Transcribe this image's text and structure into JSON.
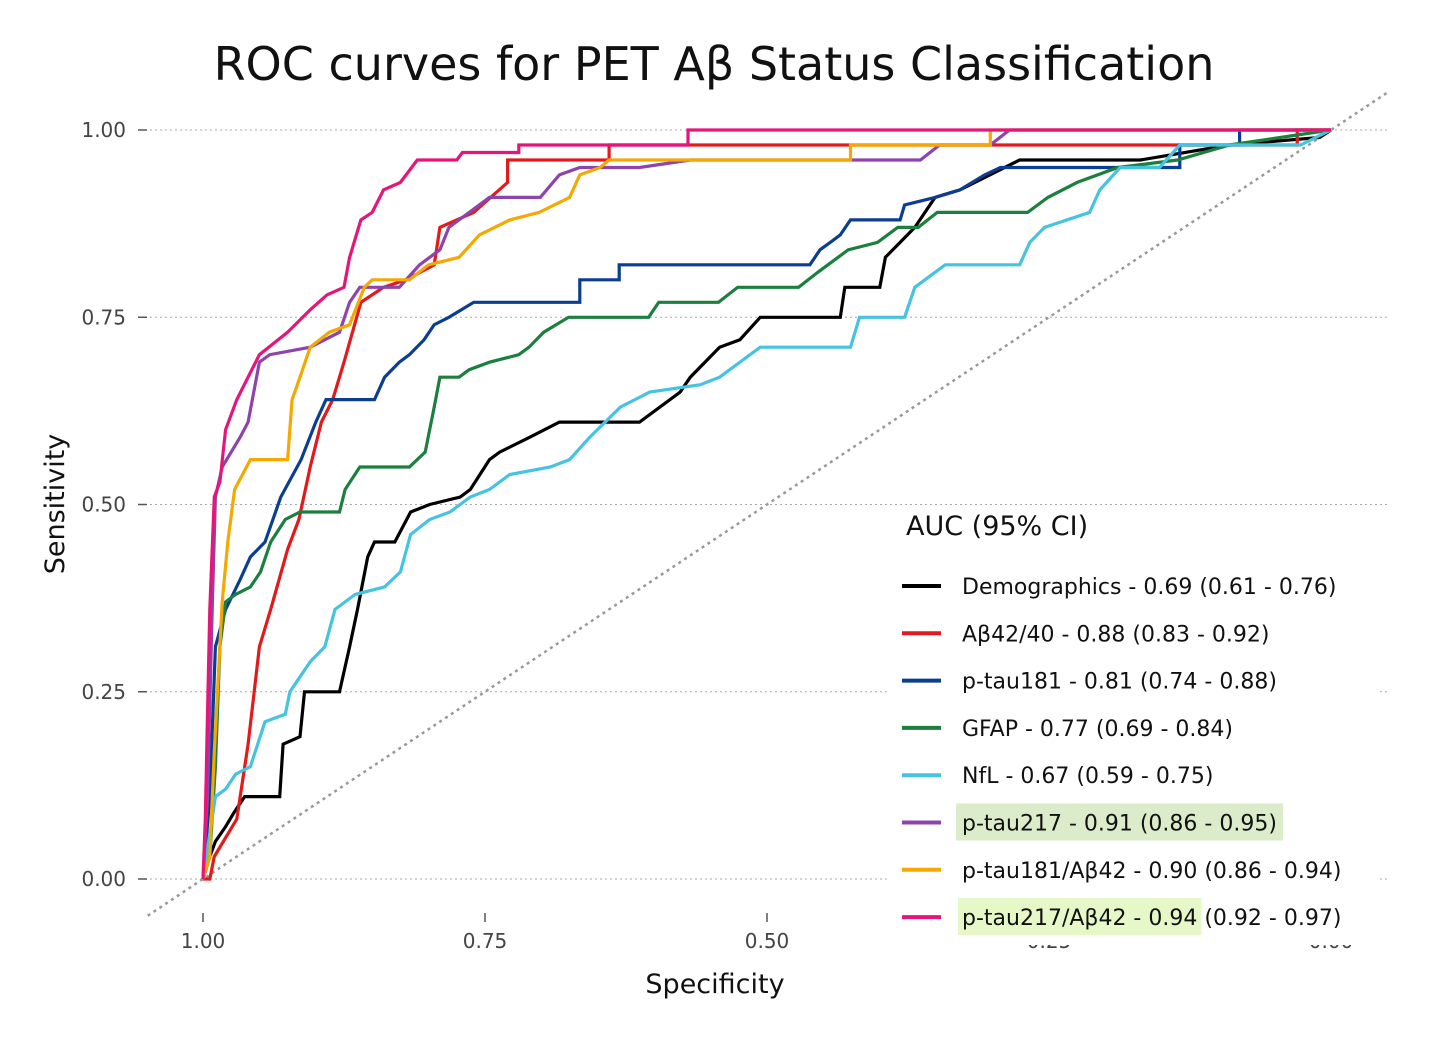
{
  "chart_data": {
    "type": "line",
    "title": "ROC curves for PET Aβ Status Classification",
    "xlabel": "Specificity",
    "ylabel": "Sensitivity",
    "xlim": [
      1.0,
      0.0
    ],
    "ylim": [
      0.0,
      1.0
    ],
    "x_reversed": true,
    "grid": "horizontal dotted",
    "reference_line": "diagonal dotted (chance)",
    "x_ticks": [
      "1.00",
      "0.75",
      "0.50",
      "0.25",
      "0.00"
    ],
    "x_tick_values": [
      1.0,
      0.75,
      0.5,
      0.25,
      0.0
    ],
    "y_ticks": [
      "0.00",
      "0.25",
      "0.50",
      "0.75",
      "1.00"
    ],
    "y_tick_values": [
      0.0,
      0.25,
      0.5,
      0.75,
      1.0
    ],
    "legend_title": "AUC (95% CI)",
    "legend_position": "bottom-right",
    "series": [
      {
        "name": "Demographics - 0.69 (0.61 - 0.76)",
        "color": "#000000",
        "highlight": null,
        "points": [
          [
            1,
            0
          ],
          [
            0.994,
            0.03
          ],
          [
            0.989,
            0.05
          ],
          [
            0.98,
            0.07
          ],
          [
            0.972,
            0.09
          ],
          [
            0.963,
            0.11
          ],
          [
            0.932,
            0.11
          ],
          [
            0.929,
            0.18
          ],
          [
            0.914,
            0.19
          ],
          [
            0.91,
            0.25
          ],
          [
            0.879,
            0.25
          ],
          [
            0.87,
            0.31
          ],
          [
            0.863,
            0.36
          ],
          [
            0.854,
            0.43
          ],
          [
            0.848,
            0.45
          ],
          [
            0.83,
            0.45
          ],
          [
            0.816,
            0.49
          ],
          [
            0.799,
            0.5
          ],
          [
            0.772,
            0.51
          ],
          [
            0.763,
            0.52
          ],
          [
            0.746,
            0.56
          ],
          [
            0.737,
            0.57
          ],
          [
            0.71,
            0.59
          ],
          [
            0.684,
            0.61
          ],
          [
            0.613,
            0.61
          ],
          [
            0.577,
            0.65
          ],
          [
            0.568,
            0.67
          ],
          [
            0.542,
            0.71
          ],
          [
            0.524,
            0.72
          ],
          [
            0.506,
            0.75
          ],
          [
            0.435,
            0.75
          ],
          [
            0.431,
            0.79
          ],
          [
            0.4,
            0.79
          ],
          [
            0.395,
            0.83
          ],
          [
            0.382,
            0.85
          ],
          [
            0.369,
            0.87
          ],
          [
            0.351,
            0.91
          ],
          [
            0.329,
            0.92
          ],
          [
            0.276,
            0.96
          ],
          [
            0.169,
            0.96
          ],
          [
            0.09,
            0.98
          ],
          [
            0.01,
            0.99
          ],
          [
            0,
            1
          ]
        ]
      },
      {
        "name": "Aβ42/40 - 0.88 (0.83 - 0.92)",
        "color": "#e31a1c",
        "highlight": null,
        "points": [
          [
            1,
            0
          ],
          [
            0.994,
            0
          ],
          [
            0.99,
            0.03
          ],
          [
            0.97,
            0.08
          ],
          [
            0.96,
            0.18
          ],
          [
            0.95,
            0.31
          ],
          [
            0.94,
            0.36
          ],
          [
            0.925,
            0.44
          ],
          [
            0.915,
            0.48
          ],
          [
            0.905,
            0.55
          ],
          [
            0.895,
            0.61
          ],
          [
            0.885,
            0.64
          ],
          [
            0.875,
            0.69
          ],
          [
            0.86,
            0.77
          ],
          [
            0.84,
            0.79
          ],
          [
            0.82,
            0.8
          ],
          [
            0.795,
            0.82
          ],
          [
            0.79,
            0.87
          ],
          [
            0.76,
            0.89
          ],
          [
            0.73,
            0.93
          ],
          [
            0.73,
            0.96
          ],
          [
            0.64,
            0.96
          ],
          [
            0.64,
            0.98
          ],
          [
            0.03,
            0.98
          ],
          [
            0.03,
            1
          ],
          [
            0,
            1
          ]
        ]
      },
      {
        "name": "p-tau181 - 0.81 (0.74 - 0.88)",
        "color": "#0b3d91",
        "highlight": null,
        "points": [
          [
            1,
            0
          ],
          [
            0.994,
            0.11
          ],
          [
            0.989,
            0.31
          ],
          [
            0.98,
            0.36
          ],
          [
            0.967,
            0.4
          ],
          [
            0.958,
            0.43
          ],
          [
            0.945,
            0.45
          ],
          [
            0.931,
            0.51
          ],
          [
            0.913,
            0.56
          ],
          [
            0.9,
            0.61
          ],
          [
            0.891,
            0.64
          ],
          [
            0.848,
            0.64
          ],
          [
            0.839,
            0.67
          ],
          [
            0.826,
            0.69
          ],
          [
            0.817,
            0.7
          ],
          [
            0.804,
            0.72
          ],
          [
            0.795,
            0.74
          ],
          [
            0.782,
            0.75
          ],
          [
            0.76,
            0.77
          ],
          [
            0.666,
            0.77
          ],
          [
            0.666,
            0.8
          ],
          [
            0.631,
            0.8
          ],
          [
            0.631,
            0.82
          ],
          [
            0.462,
            0.82
          ],
          [
            0.453,
            0.84
          ],
          [
            0.444,
            0.85
          ],
          [
            0.435,
            0.86
          ],
          [
            0.426,
            0.88
          ],
          [
            0.382,
            0.88
          ],
          [
            0.378,
            0.9
          ],
          [
            0.351,
            0.91
          ],
          [
            0.329,
            0.92
          ],
          [
            0.307,
            0.94
          ],
          [
            0.293,
            0.95
          ],
          [
            0.134,
            0.95
          ],
          [
            0.134,
            0.98
          ],
          [
            0.081,
            0.98
          ],
          [
            0.081,
            1
          ],
          [
            0,
            1
          ]
        ]
      },
      {
        "name": "GFAP - 0.77 (0.69 - 0.84)",
        "color": "#1b7f3e",
        "highlight": null,
        "points": [
          [
            1,
            0
          ],
          [
            0.994,
            0.03
          ],
          [
            0.989,
            0.15
          ],
          [
            0.985,
            0.31
          ],
          [
            0.98,
            0.37
          ],
          [
            0.971,
            0.38
          ],
          [
            0.958,
            0.39
          ],
          [
            0.949,
            0.41
          ],
          [
            0.94,
            0.45
          ],
          [
            0.927,
            0.48
          ],
          [
            0.914,
            0.49
          ],
          [
            0.879,
            0.49
          ],
          [
            0.874,
            0.52
          ],
          [
            0.861,
            0.55
          ],
          [
            0.817,
            0.55
          ],
          [
            0.803,
            0.57
          ],
          [
            0.795,
            0.63
          ],
          [
            0.79,
            0.67
          ],
          [
            0.773,
            0.67
          ],
          [
            0.764,
            0.68
          ],
          [
            0.746,
            0.69
          ],
          [
            0.72,
            0.7
          ],
          [
            0.711,
            0.71
          ],
          [
            0.698,
            0.73
          ],
          [
            0.676,
            0.75
          ],
          [
            0.605,
            0.75
          ],
          [
            0.596,
            0.77
          ],
          [
            0.543,
            0.77
          ],
          [
            0.526,
            0.79
          ],
          [
            0.472,
            0.79
          ],
          [
            0.455,
            0.81
          ],
          [
            0.437,
            0.83
          ],
          [
            0.428,
            0.84
          ],
          [
            0.402,
            0.85
          ],
          [
            0.384,
            0.87
          ],
          [
            0.366,
            0.87
          ],
          [
            0.349,
            0.89
          ],
          [
            0.269,
            0.89
          ],
          [
            0.251,
            0.91
          ],
          [
            0.225,
            0.93
          ],
          [
            0.189,
            0.95
          ],
          [
            0.136,
            0.96
          ],
          [
            0.09,
            0.98
          ],
          [
            0,
            1
          ]
        ]
      },
      {
        "name": "NfL - 0.67 (0.59 - 0.75)",
        "color": "#45c3e0",
        "highlight": null,
        "points": [
          [
            1,
            0
          ],
          [
            0.996,
            0.04
          ],
          [
            0.989,
            0.11
          ],
          [
            0.98,
            0.12
          ],
          [
            0.971,
            0.14
          ],
          [
            0.958,
            0.15
          ],
          [
            0.945,
            0.21
          ],
          [
            0.927,
            0.22
          ],
          [
            0.923,
            0.25
          ],
          [
            0.905,
            0.29
          ],
          [
            0.892,
            0.31
          ],
          [
            0.883,
            0.36
          ],
          [
            0.865,
            0.38
          ],
          [
            0.839,
            0.39
          ],
          [
            0.825,
            0.41
          ],
          [
            0.816,
            0.46
          ],
          [
            0.799,
            0.48
          ],
          [
            0.781,
            0.49
          ],
          [
            0.763,
            0.51
          ],
          [
            0.746,
            0.52
          ],
          [
            0.728,
            0.54
          ],
          [
            0.692,
            0.55
          ],
          [
            0.675,
            0.56
          ],
          [
            0.657,
            0.59
          ],
          [
            0.63,
            0.63
          ],
          [
            0.604,
            0.65
          ],
          [
            0.559,
            0.66
          ],
          [
            0.542,
            0.67
          ],
          [
            0.506,
            0.71
          ],
          [
            0.426,
            0.71
          ],
          [
            0.418,
            0.75
          ],
          [
            0.378,
            0.75
          ],
          [
            0.369,
            0.79
          ],
          [
            0.342,
            0.82
          ],
          [
            0.276,
            0.82
          ],
          [
            0.267,
            0.85
          ],
          [
            0.254,
            0.87
          ],
          [
            0.214,
            0.89
          ],
          [
            0.205,
            0.92
          ],
          [
            0.187,
            0.95
          ],
          [
            0.152,
            0.95
          ],
          [
            0.134,
            0.98
          ],
          [
            0.027,
            0.98
          ],
          [
            0,
            1
          ]
        ]
      },
      {
        "name": "p-tau217 - 0.91 (0.86 - 0.95)",
        "color": "#8e44ad",
        "highlight": "full",
        "points": [
          [
            1,
            0
          ],
          [
            0.996,
            0.11
          ],
          [
            0.992,
            0.35
          ],
          [
            0.989,
            0.51
          ],
          [
            0.983,
            0.55
          ],
          [
            0.967,
            0.59
          ],
          [
            0.96,
            0.61
          ],
          [
            0.95,
            0.69
          ],
          [
            0.941,
            0.7
          ],
          [
            0.905,
            0.71
          ],
          [
            0.879,
            0.73
          ],
          [
            0.87,
            0.77
          ],
          [
            0.861,
            0.79
          ],
          [
            0.826,
            0.79
          ],
          [
            0.808,
            0.82
          ],
          [
            0.79,
            0.84
          ],
          [
            0.782,
            0.87
          ],
          [
            0.764,
            0.89
          ],
          [
            0.746,
            0.91
          ],
          [
            0.701,
            0.91
          ],
          [
            0.684,
            0.94
          ],
          [
            0.666,
            0.95
          ],
          [
            0.613,
            0.95
          ],
          [
            0.568,
            0.96
          ],
          [
            0.364,
            0.96
          ],
          [
            0.347,
            0.98
          ],
          [
            0.302,
            0.98
          ],
          [
            0.285,
            1
          ],
          [
            0,
            1
          ]
        ]
      },
      {
        "name": "p-tau181/Aβ42 - 0.90 (0.86 - 0.94)",
        "color": "#f5a800",
        "highlight": null,
        "points": [
          [
            1,
            0
          ],
          [
            0.994,
            0.03
          ],
          [
            0.99,
            0.17
          ],
          [
            0.983,
            0.37
          ],
          [
            0.978,
            0.45
          ],
          [
            0.972,
            0.52
          ],
          [
            0.958,
            0.56
          ],
          [
            0.925,
            0.56
          ],
          [
            0.921,
            0.64
          ],
          [
            0.914,
            0.67
          ],
          [
            0.905,
            0.71
          ],
          [
            0.888,
            0.73
          ],
          [
            0.87,
            0.74
          ],
          [
            0.857,
            0.79
          ],
          [
            0.85,
            0.8
          ],
          [
            0.817,
            0.8
          ],
          [
            0.8,
            0.82
          ],
          [
            0.773,
            0.83
          ],
          [
            0.755,
            0.86
          ],
          [
            0.728,
            0.88
          ],
          [
            0.702,
            0.89
          ],
          [
            0.675,
            0.91
          ],
          [
            0.666,
            0.94
          ],
          [
            0.648,
            0.95
          ],
          [
            0.64,
            0.96
          ],
          [
            0.426,
            0.96
          ],
          [
            0.426,
            0.98
          ],
          [
            0.302,
            0.98
          ],
          [
            0.302,
            1
          ],
          [
            0,
            1
          ]
        ]
      },
      {
        "name": "p-tau217/Aβ42 - 0.94 (0.92 - 0.97)",
        "color": "#e6157a",
        "highlight": "partial",
        "name_highlighted": "p-tau217/Aβ42 - 0.94",
        "name_rest": " (0.92 - 0.97)",
        "points": [
          [
            1,
            0
          ],
          [
            0.998,
            0.08
          ],
          [
            0.996,
            0.22
          ],
          [
            0.994,
            0.36
          ],
          [
            0.99,
            0.51
          ],
          [
            0.985,
            0.53
          ],
          [
            0.98,
            0.6
          ],
          [
            0.97,
            0.64
          ],
          [
            0.95,
            0.7
          ],
          [
            0.925,
            0.73
          ],
          [
            0.905,
            0.76
          ],
          [
            0.89,
            0.78
          ],
          [
            0.875,
            0.79
          ],
          [
            0.87,
            0.83
          ],
          [
            0.86,
            0.88
          ],
          [
            0.85,
            0.89
          ],
          [
            0.84,
            0.92
          ],
          [
            0.825,
            0.93
          ],
          [
            0.81,
            0.96
          ],
          [
            0.775,
            0.96
          ],
          [
            0.77,
            0.97
          ],
          [
            0.72,
            0.97
          ],
          [
            0.72,
            0.98
          ],
          [
            0.57,
            0.98
          ],
          [
            0.57,
            1
          ],
          [
            0,
            1
          ]
        ]
      }
    ],
    "highlight_colors": {
      "full": "#dcebc9",
      "partial": "#e6f8c8"
    }
  }
}
